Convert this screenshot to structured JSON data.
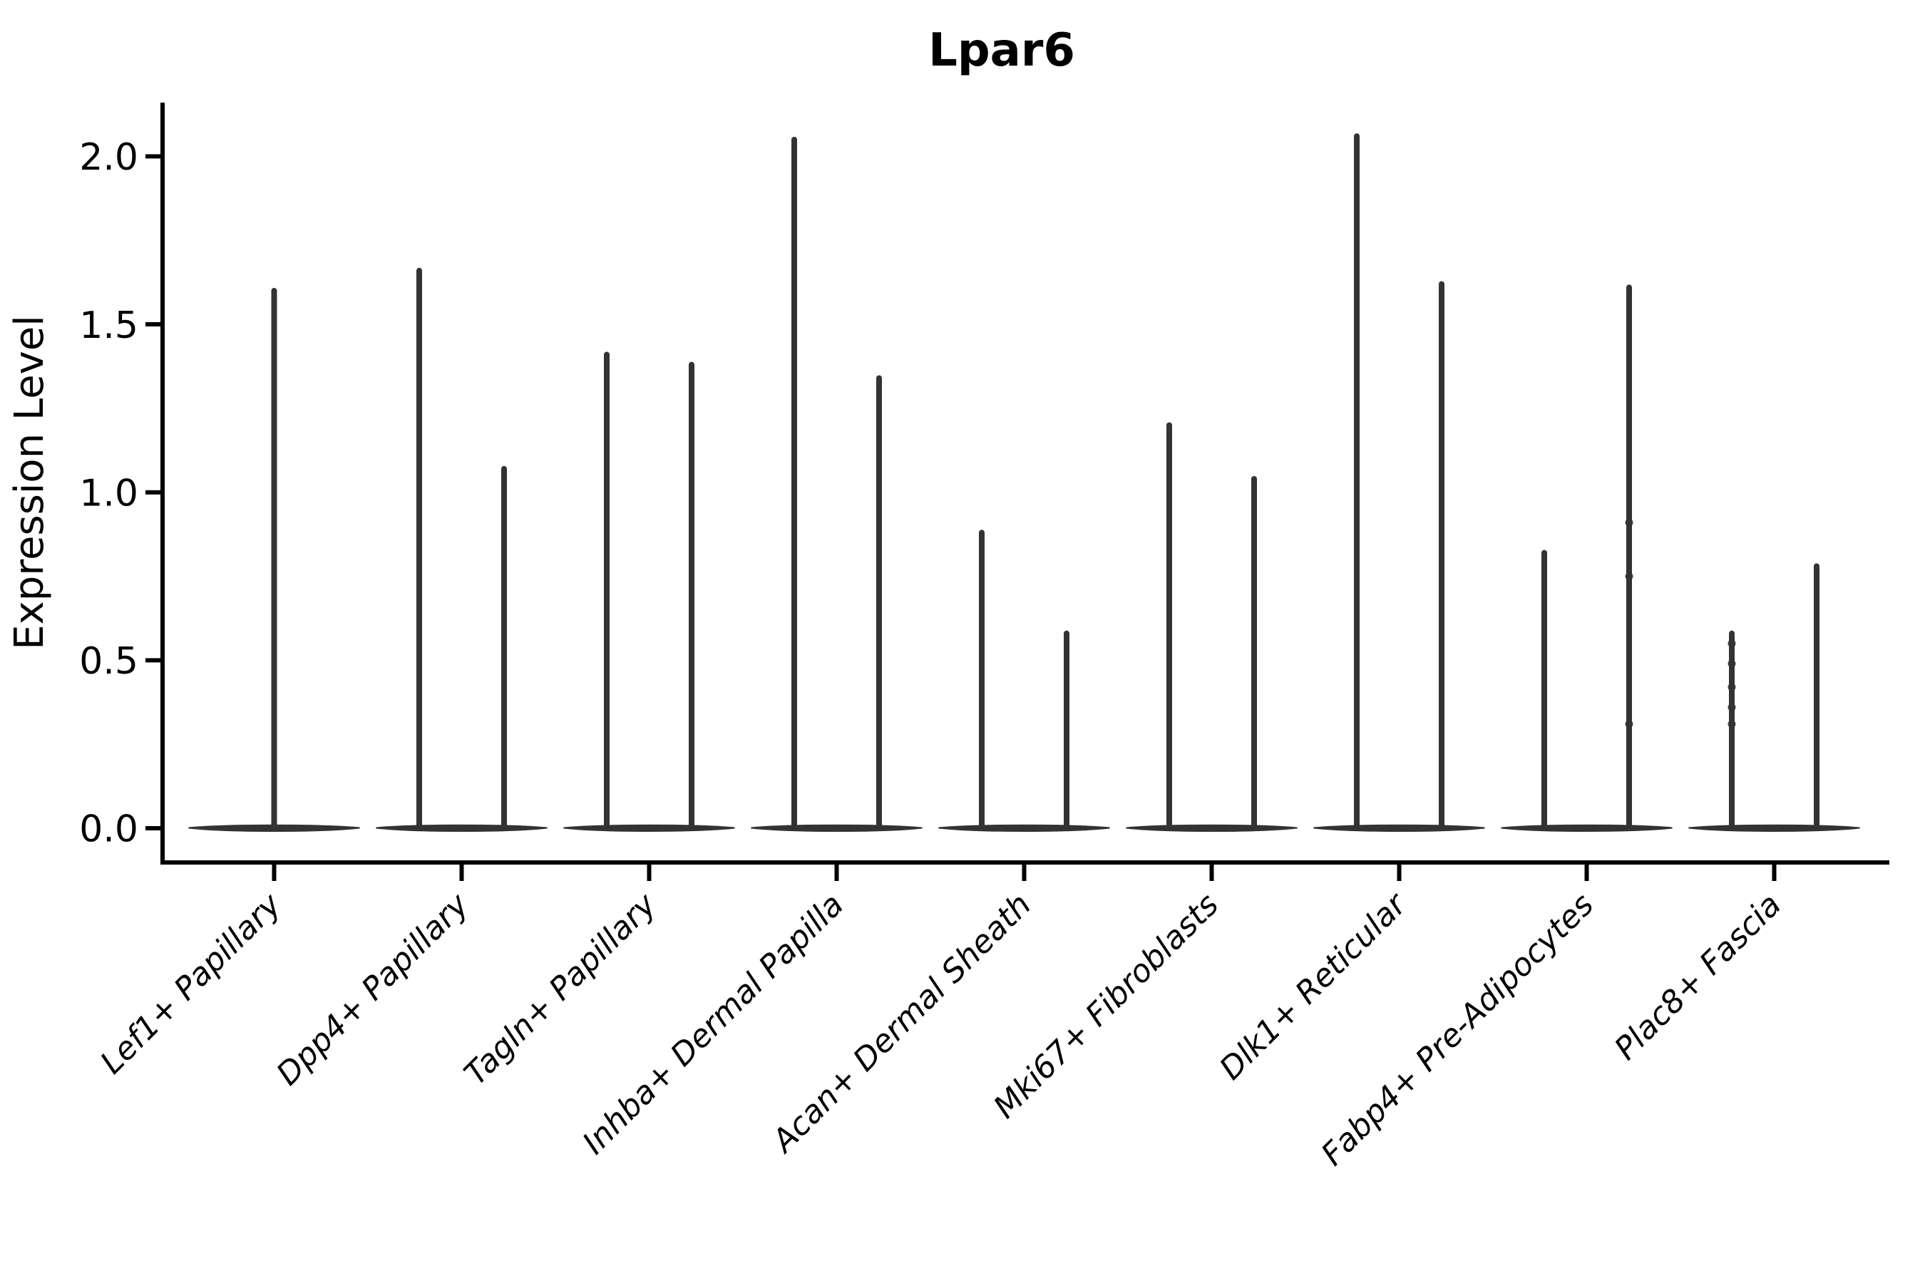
{
  "chart_data": {
    "type": "violin",
    "title": "Lpar6",
    "ylabel": "Expression Level",
    "xlabel": "",
    "yticks": [
      "0.0",
      "0.5",
      "1.0",
      "1.5",
      "2.0"
    ],
    "ytick_values": [
      0.0,
      0.5,
      1.0,
      1.5,
      2.0
    ],
    "ylim": [
      -0.1,
      2.16
    ],
    "grid": false,
    "legend": null,
    "background_color": "#ffffff",
    "violin_color": "#333333",
    "axis_color": "#000000",
    "categories": [
      {
        "label": "Lef1+ Papillary",
        "violins": [
          {
            "position": "center",
            "max": 1.6
          }
        ]
      },
      {
        "label": "Dpp4+ Papillary",
        "violins": [
          {
            "position": "left",
            "max": 1.66
          },
          {
            "position": "right",
            "max": 1.07
          }
        ]
      },
      {
        "label": "Tagln+ Papillary",
        "violins": [
          {
            "position": "left",
            "max": 1.41
          },
          {
            "position": "right",
            "max": 1.38
          }
        ]
      },
      {
        "label": "Inhba+ Dermal Papilla",
        "violins": [
          {
            "position": "left",
            "max": 2.05
          },
          {
            "position": "right",
            "max": 1.34
          }
        ]
      },
      {
        "label": "Acan+ Dermal Sheath",
        "violins": [
          {
            "position": "left",
            "max": 0.88
          },
          {
            "position": "right",
            "max": 0.58
          }
        ]
      },
      {
        "label": "Mki67+ Fibroblasts",
        "violins": [
          {
            "position": "left",
            "max": 1.2
          },
          {
            "position": "right",
            "max": 1.04
          }
        ]
      },
      {
        "label": "Dlk1+ Reticular",
        "violins": [
          {
            "position": "left",
            "max": 2.06
          },
          {
            "position": "right",
            "max": 1.62
          }
        ]
      },
      {
        "label": "Fabp4+ Pre-Adipocytes",
        "violins": [
          {
            "position": "left",
            "max": 0.82
          },
          {
            "position": "right",
            "max": 1.61,
            "dots": [
              0.91,
              0.75,
              0.31
            ]
          }
        ]
      },
      {
        "label": "Plac8+ Fascia",
        "violins": [
          {
            "position": "left",
            "max": 0.58,
            "dots": [
              0.55,
              0.49,
              0.42,
              0.36,
              0.31
            ]
          },
          {
            "position": "right",
            "max": 0.78
          }
        ]
      }
    ],
    "baseline_value": 0.0
  }
}
